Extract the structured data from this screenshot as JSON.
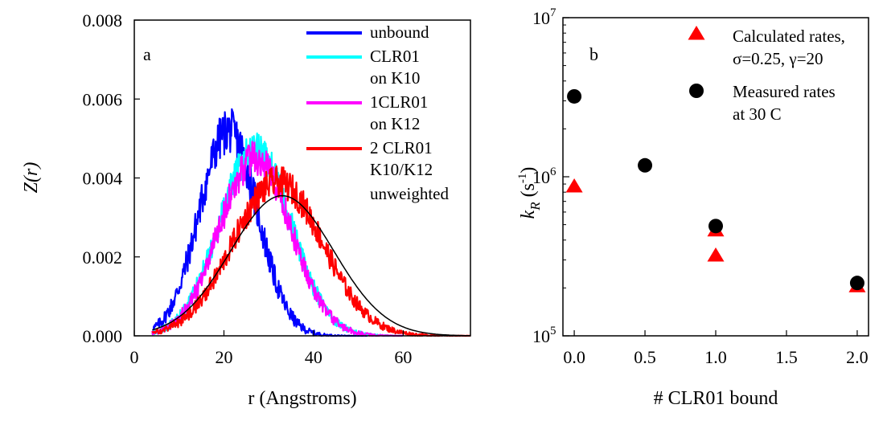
{
  "chart_data": [
    {
      "type": "line",
      "panel_label": "a",
      "xlabel": "r (Angstroms)",
      "ylabel": "Z(r)",
      "xlim": [
        0,
        75
      ],
      "ylim": [
        0,
        0.008
      ],
      "x_ticks": [
        "0",
        "20",
        "40",
        "60"
      ],
      "y_ticks": [
        "0.000",
        "0.002",
        "0.004",
        "0.006",
        "0.008"
      ],
      "legend_position": "top-right",
      "series": [
        {
          "name": "unbound",
          "color": "#0000ff",
          "lines": [
            "unbound"
          ],
          "mean": 21,
          "sd": 6.5,
          "xmin": 4,
          "xmax": 52,
          "peak": 0.0052,
          "noise": 0.00058
        },
        {
          "name": "CLR01 on K10",
          "color": "#00ffff",
          "lines": [
            " CLR01",
            "on K10"
          ],
          "mean": 27,
          "sd": 8,
          "xmin": 4,
          "xmax": 60,
          "peak": 0.0047,
          "noise": 0.00045
        },
        {
          "name": "1CLR01 on K12",
          "color": "#ff00ff",
          "lines": [
            "1CLR01",
            "on K12"
          ],
          "mean": 27,
          "sd": 8,
          "xmin": 4,
          "xmax": 60,
          "peak": 0.0045,
          "noise": 0.00045
        },
        {
          "name": "2 CLR01 K10/K12",
          "color": "#ff0000",
          "lines": [
            "2 CLR01",
            "K10/K12"
          ],
          "mean": 32,
          "sd": 10,
          "xmin": 4,
          "xmax": 75,
          "peak": 0.0039,
          "noise": 0.0004
        },
        {
          "name": "unweighted",
          "color": "#000000",
          "lines": [
            "unweighted"
          ],
          "mean": 33,
          "sd": 11.5,
          "xmin": 4,
          "xmax": 75,
          "peak": 0.00355,
          "noise": 0
        }
      ]
    },
    {
      "type": "scatter",
      "panel_label": "b",
      "xlabel": "# CLR01 bound",
      "ylabel": "k_R (s^-1)",
      "y_scale": "log",
      "xlim": [
        -0.08,
        2.08
      ],
      "ylim": [
        100000,
        10000000
      ],
      "x_ticks": [
        "0.0",
        "0.5",
        "1.0",
        "1.5",
        "2.0"
      ],
      "y_ticks": [
        "10^5",
        "10^6",
        "10^7"
      ],
      "legend_position": "top-right",
      "series": [
        {
          "name": "Calculated rates, σ=0.25, γ=20",
          "marker": "triangle",
          "color": "#ff0000",
          "lines": [
            "Calculated rates,",
            "σ=0.25, γ=20"
          ],
          "x": [
            0.0,
            1.0,
            1.0,
            2.0
          ],
          "y": [
            870000,
            460000,
            320000,
            205000
          ]
        },
        {
          "name": "Measured rates at 30 C",
          "marker": "circle",
          "color": "#000000",
          "lines": [
            "Measured rates",
            " at 30 C"
          ],
          "x": [
            0.0,
            0.5,
            1.0,
            2.0
          ],
          "y": [
            3200000,
            1180000,
            490000,
            215000
          ]
        }
      ]
    }
  ]
}
